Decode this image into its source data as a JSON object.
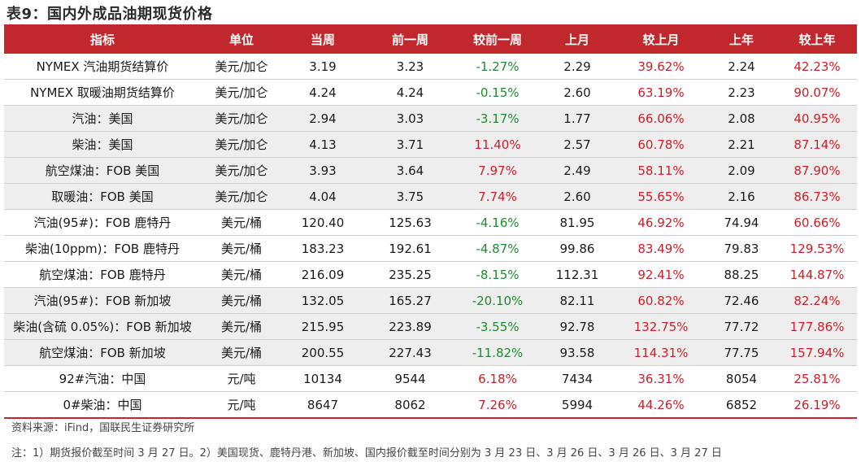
{
  "title": "表9：国内外成品油期现货价格",
  "headers": [
    "指标",
    "单位",
    "当周",
    "前一周",
    "较前一周",
    "上月",
    "较上月",
    "上年",
    "较上年"
  ],
  "colors": {
    "header_bg": "#c0282d",
    "positive": "#c8202a",
    "negative": "#1f8a2e",
    "shaded_row": "#eeeeee"
  },
  "rows": [
    {
      "cells": [
        "NYMEX 汽油期货结算价",
        "美元/加仑",
        "3.19",
        "3.23",
        "-1.27%",
        "2.29",
        "39.62%",
        "2.24",
        "42.23%"
      ],
      "shaded": false
    },
    {
      "cells": [
        "NYMEX 取暖油期货结算价",
        "美元/加仑",
        "4.24",
        "4.24",
        "-0.15%",
        "2.60",
        "63.19%",
        "2.23",
        "90.07%"
      ],
      "shaded": false
    },
    {
      "cells": [
        "汽油：美国",
        "美元/加仑",
        "2.94",
        "3.03",
        "-3.17%",
        "1.77",
        "66.06%",
        "2.08",
        "40.95%"
      ],
      "shaded": true
    },
    {
      "cells": [
        "柴油：美国",
        "美元/加仑",
        "4.13",
        "3.71",
        "11.40%",
        "2.57",
        "60.78%",
        "2.21",
        "87.14%"
      ],
      "shaded": true
    },
    {
      "cells": [
        "航空煤油：FOB 美国",
        "美元/加仑",
        "3.93",
        "3.64",
        "7.97%",
        "2.49",
        "58.11%",
        "2.09",
        "87.90%"
      ],
      "shaded": true
    },
    {
      "cells": [
        "取暖油：FOB 美国",
        "美元/加仑",
        "4.04",
        "3.75",
        "7.74%",
        "2.60",
        "55.65%",
        "2.16",
        "86.73%"
      ],
      "shaded": true
    },
    {
      "cells": [
        "汽油(95#)：FOB 鹿特丹",
        "美元/桶",
        "120.40",
        "125.63",
        "-4.16%",
        "81.95",
        "46.92%",
        "74.94",
        "60.66%"
      ],
      "shaded": false
    },
    {
      "cells": [
        "柴油(10ppm)：FOB 鹿特丹",
        "美元/桶",
        "183.23",
        "192.61",
        "-4.87%",
        "99.86",
        "83.49%",
        "79.83",
        "129.53%"
      ],
      "shaded": false
    },
    {
      "cells": [
        "航空煤油：FOB 鹿特丹",
        "美元/桶",
        "216.09",
        "235.25",
        "-8.15%",
        "112.31",
        "92.41%",
        "88.25",
        "144.87%"
      ],
      "shaded": false
    },
    {
      "cells": [
        "汽油(95#)：FOB 新加坡",
        "美元/桶",
        "132.05",
        "165.27",
        "-20.10%",
        "82.11",
        "60.82%",
        "72.46",
        "82.24%"
      ],
      "shaded": true
    },
    {
      "cells": [
        "柴油(含硫 0.05%)：FOB 新加坡",
        "美元/桶",
        "215.95",
        "223.89",
        "-3.55%",
        "92.78",
        "132.75%",
        "77.72",
        "177.86%"
      ],
      "shaded": true
    },
    {
      "cells": [
        "航空煤油：FOB 新加坡",
        "美元/桶",
        "200.55",
        "227.43",
        "-11.82%",
        "93.58",
        "114.31%",
        "77.75",
        "157.94%"
      ],
      "shaded": true
    },
    {
      "cells": [
        "92#汽油：中国",
        "元/吨",
        "10134",
        "9544",
        "6.18%",
        "7434",
        "36.31%",
        "8054",
        "25.81%"
      ],
      "shaded": false
    },
    {
      "cells": [
        "0#柴油：中国",
        "元/吨",
        "8647",
        "8062",
        "7.26%",
        "5994",
        "44.26%",
        "6852",
        "26.19%"
      ],
      "shaded": false
    }
  ],
  "source": "资料来源：iFind，国联民生证券研究所",
  "note": "注：1）期货报价截至时间 3 月 27 日。2）美国现货、鹿特丹港、新加坡、国内报价截至时间分别为 3 月 23 日、3 月 26 日、3 月 26 日、3 月 27 日"
}
